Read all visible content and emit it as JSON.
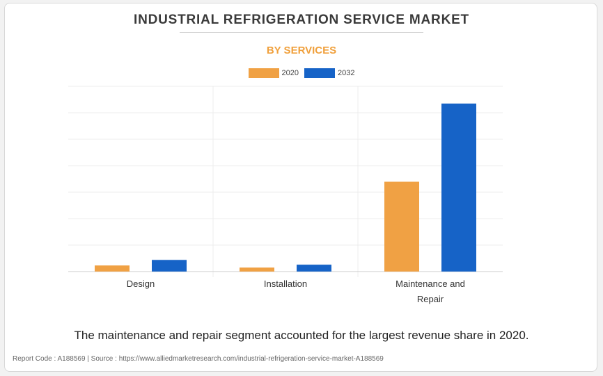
{
  "chart_data": {
    "type": "bar",
    "title": "INDUSTRIAL REFRIGERATION SERVICE MARKET",
    "subtitle": "BY SERVICES",
    "categories": [
      "Design",
      "Installation",
      "Maintenance and Repair"
    ],
    "series": [
      {
        "name": "2020",
        "color": "#f0a144",
        "values": [
          2.3,
          1.5,
          34.0
        ]
      },
      {
        "name": "2032",
        "color": "#1663c7",
        "values": [
          4.4,
          2.6,
          63.5
        ]
      }
    ],
    "ylim": [
      0,
      70
    ],
    "grid": true,
    "legend_position": "top-center",
    "xlabel": "",
    "ylabel": ""
  },
  "footer": {
    "statement": "The maintenance and repair segment accounted for the largest revenue share in 2020.",
    "source": "Report Code : A188569  |  Source : https://www.alliedmarketresearch.com/industrial-refrigeration-service-market-A188569"
  }
}
